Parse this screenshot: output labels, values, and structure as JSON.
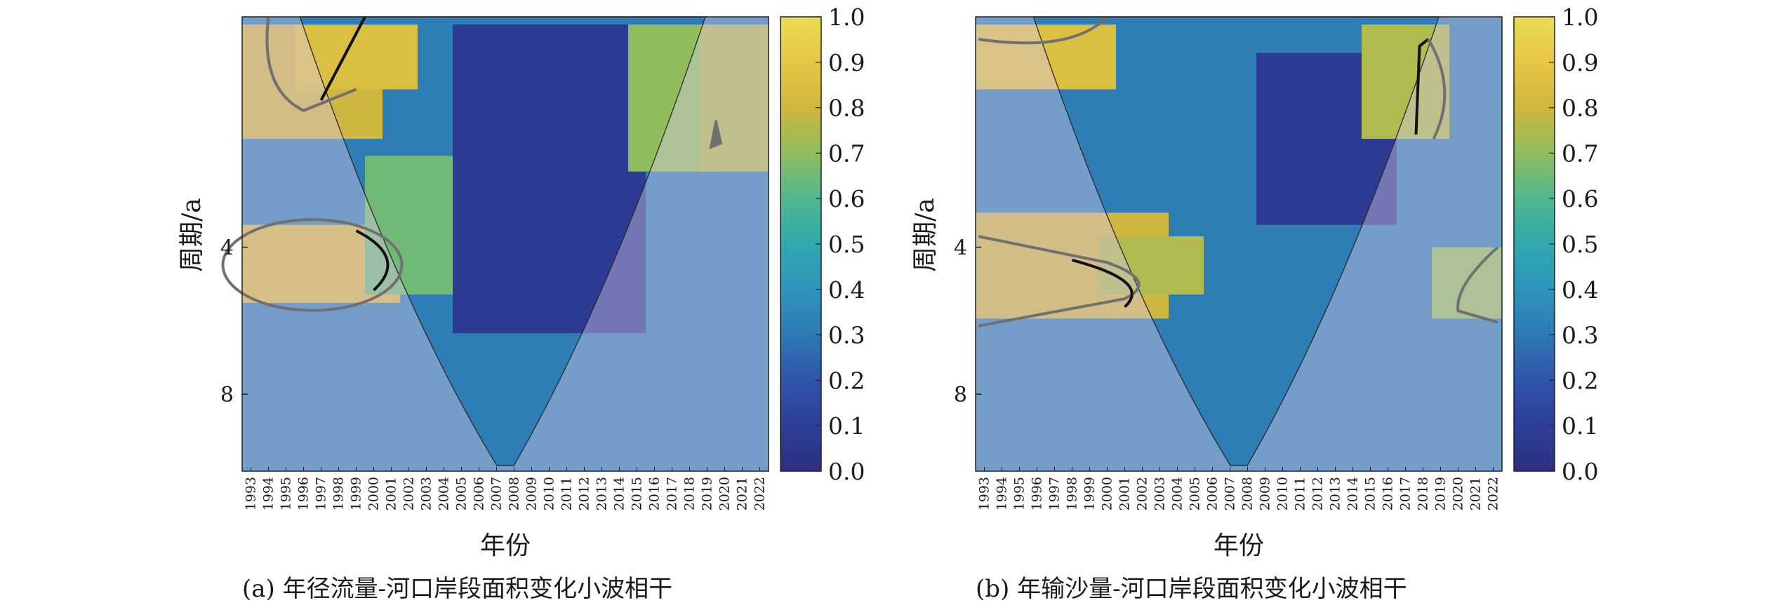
{
  "chart_data": [
    {
      "type": "heatmap",
      "panel": "a",
      "caption": "(a) 年径流量-河口岸段面积变化小波相干",
      "xlabel": "年份",
      "ylabel": "周期/a",
      "x": [
        1993,
        1994,
        1995,
        1996,
        1997,
        1998,
        1999,
        2000,
        2001,
        2002,
        2003,
        2004,
        2005,
        2006,
        2007,
        2008,
        2009,
        2010,
        2011,
        2012,
        2013,
        2014,
        2015,
        2016,
        2017,
        2018,
        2019,
        2020,
        2021,
        2022
      ],
      "yticks": [
        4,
        8
      ],
      "y_scale": "log2",
      "ylim": [
        1.35,
        11.5
      ],
      "colorbar": {
        "ticks": [
          "0.0",
          "0.1",
          "0.2",
          "0.3",
          "0.4",
          "0.5",
          "0.6",
          "0.7",
          "0.8",
          "0.9",
          "1.0"
        ],
        "range": [
          0,
          1
        ]
      },
      "regions": [
        {
          "x": [
            1993,
            2000
          ],
          "period": [
            1.4,
            2.4
          ],
          "coherence": 0.8
        },
        {
          "x": [
            1996,
            2002
          ],
          "period": [
            1.4,
            1.9
          ],
          "coherence": 0.85
        },
        {
          "x": [
            1993,
            2001
          ],
          "period": [
            3.6,
            5.2
          ],
          "coherence": 0.82
        },
        {
          "x": [
            2000,
            2006
          ],
          "period": [
            2.6,
            5.0
          ],
          "coherence": 0.65
        },
        {
          "x": [
            2005,
            2015
          ],
          "period": [
            1.4,
            6.0
          ],
          "coherence": 0.08
        },
        {
          "x": [
            2015,
            2019
          ],
          "period": [
            1.4,
            2.8
          ],
          "coherence": 0.7
        },
        {
          "x": [
            2019,
            2022
          ],
          "period": [
            1.4,
            2.8
          ],
          "coherence": 0.75
        }
      ]
    },
    {
      "type": "heatmap",
      "panel": "b",
      "caption": "(b) 年输沙量-河口岸段面积变化小波相干",
      "xlabel": "年份",
      "ylabel": "周期/a",
      "x": [
        1993,
        1994,
        1995,
        1996,
        1997,
        1998,
        1999,
        2000,
        2001,
        2002,
        2003,
        2004,
        2005,
        2006,
        2007,
        2008,
        2009,
        2010,
        2011,
        2012,
        2013,
        2014,
        2015,
        2016,
        2017,
        2018,
        2019,
        2020,
        2021,
        2022
      ],
      "yticks": [
        4,
        8
      ],
      "y_scale": "log2",
      "ylim": [
        1.35,
        11.5
      ],
      "colorbar": {
        "ticks": [
          "0.0",
          "0.1",
          "0.2",
          "0.3",
          "0.4",
          "0.5",
          "0.6",
          "0.7",
          "0.8",
          "0.9",
          "1.0"
        ],
        "range": [
          0,
          1
        ]
      },
      "regions": [
        {
          "x": [
            1993,
            2000
          ],
          "period": [
            1.4,
            1.9
          ],
          "coherence": 0.85
        },
        {
          "x": [
            1993,
            2003
          ],
          "period": [
            3.4,
            5.6
          ],
          "coherence": 0.8
        },
        {
          "x": [
            2000,
            2005
          ],
          "period": [
            3.8,
            5.0
          ],
          "coherence": 0.75
        },
        {
          "x": [
            2009,
            2016
          ],
          "period": [
            1.6,
            3.6
          ],
          "coherence": 0.08
        },
        {
          "x": [
            2015,
            2019
          ],
          "period": [
            1.4,
            2.4
          ],
          "coherence": 0.75
        },
        {
          "x": [
            2019,
            2022
          ],
          "period": [
            4.0,
            5.6
          ],
          "coherence": 0.7
        }
      ]
    }
  ]
}
